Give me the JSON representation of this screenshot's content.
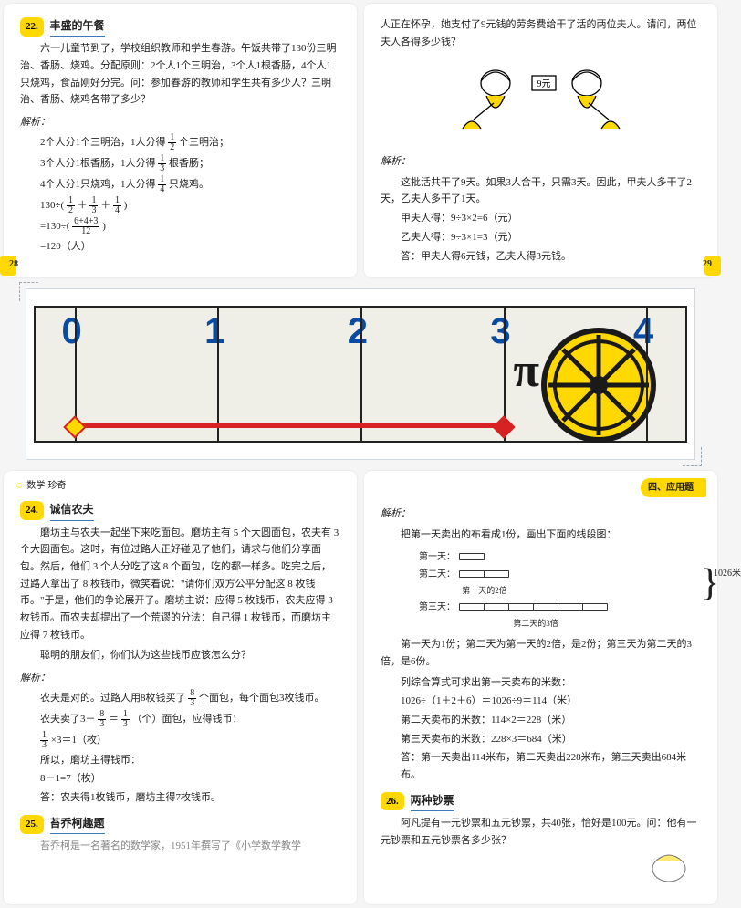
{
  "colors": {
    "accent": "#ffd800",
    "blue": "#0a4aa0",
    "red": "#d62222",
    "text": "#222222",
    "bg": "#f5f5f5"
  },
  "p28": {
    "num": "22.",
    "title": "丰盛的午餐",
    "body": "六一儿童节到了，学校组织教师和学生春游。午饭共带了130份三明治、香肠、烧鸡。分配原则：2个人1个三明治，3个人1根香肠，4个人1只烧鸡，食品刚好分完。问：参加春游的教师和学生共有多少人？三明治、香肠、烧鸡各带了多少？",
    "sol_label": "解析：",
    "s1a": "2个人分1个三明治，1人分得",
    "s1b": "个三明治；",
    "s2a": "3个人分1根香肠，1人分得",
    "s2b": "根香肠；",
    "s3a": "4个人分1只烧鸡，1人分得",
    "s3b": "只烧鸡。",
    "s4a": "130÷(",
    "s4b": "＋",
    "s4c": "＋",
    "s4d": ")",
    "s5a": "=130÷(",
    "s5b": ")",
    "s6": "=120（人）",
    "pg": "28"
  },
  "p29": {
    "intro": "人正在怀孕，她支付了9元钱的劳务费给干了活的两位夫人。请问，两位夫人各得多少钱？",
    "sign": "9元",
    "sol_label": "解析：",
    "l1": "这批活共干了9天。如果3人合干，只需3天。因此，甲夫人多干了2天，乙夫人多干了1天。",
    "l2": "甲夫人得：9÷3×2=6（元）",
    "l3": "乙夫人得：9÷3×1=3（元）",
    "l4": "答：甲夫人得6元钱，乙夫人得3元钱。",
    "pg": "29"
  },
  "banner": {
    "nums": [
      "0",
      "1",
      "2",
      "3",
      "4"
    ],
    "tick_positions_pct": [
      6,
      28,
      50,
      72,
      94
    ],
    "redbar_left_pct": 6,
    "redbar_right_pct": 72,
    "diamond1_pct": 6,
    "diamond2_pct": 72,
    "pi": "π",
    "wheel_color": "#ffd800",
    "wheel_stroke": "#1a1a1a"
  },
  "p30": {
    "hdr": "数学·珍奇",
    "s24_num": "24.",
    "s24_title": "诚信农夫",
    "s24_body": "磨坊主与农夫一起坐下来吃面包。磨坊主有 5 个大圆面包，农夫有 3 个大圆面包。这时，有位过路人正好碰见了他们，请求与他们分享面包。然后，他们 3 个人分吃了这 8 个面包，吃的都一样多。吃完之后，过路人拿出了 8 枚钱币，微笑着说：\"请你们双方公平分配这 8 枚钱币。\"于是，他们的争论展开了。磨坊主说：应得 5 枚钱币，农夫应得 3 枚钱币。而农夫却提出了一个荒谬的分法：自己得 1 枚钱币，而磨坊主应得 7 枚钱币。",
    "s24_q": "聪明的朋友们，你们认为这些钱币应该怎么分？",
    "s24_sol": "解析：",
    "s24_l1a": "农夫是对的。过路人用8枚钱买了",
    "s24_l1b": "个面包，每个面包3枚钱币。",
    "s24_l2a": "农夫卖了3－",
    "s24_l2b": "＝",
    "s24_l2c": "（个）面包，应得钱币：",
    "s24_l3": "×3＝1（枚）",
    "s24_l4": "所以，磨坊主得钱币：",
    "s24_l5": "8－1=7（枚）",
    "s24_l6": "答：农夫得1枚钱币，磨坊主得7枚钱币。",
    "s25_num": "25.",
    "s25_title": "苔乔柯趣题",
    "s25_tail": "苔乔柯是一名著名的数学家，1951年撰写了《小学数学教学"
  },
  "p31": {
    "hdr": "四、应用题",
    "sol": "解析：",
    "intro2": "把第一天卖出的布看成1份，画出下面的线段图：",
    "d1": "第一天：",
    "d2": "第二天：",
    "d3": "第三天：",
    "cap2": "第一天的2倍",
    "cap3": "第二天的3倍",
    "total": "1026米",
    "l1": "第一天为1份；第二天为第一天的2倍，是2份；第三天为第二天的3倍，是6份。",
    "l2": "列综合算式可求出第一天卖布的米数：",
    "l3": "1026÷（1＋2＋6）＝1026÷9＝114（米）",
    "l4": "第二天卖布的米数：114×2＝228（米）",
    "l5": "第三天卖布的米数：228×3＝684（米）",
    "l6": "答：第一天卖出114米布，第二天卖出228米布，第三天卖出684米布。",
    "s26_num": "26.",
    "s26_title": "两种钞票",
    "s26_body": "阿凡提有一元钞票和五元钞票，共40张，恰好是100元。问：他有一元钞票和五元钞票各多少张？"
  }
}
